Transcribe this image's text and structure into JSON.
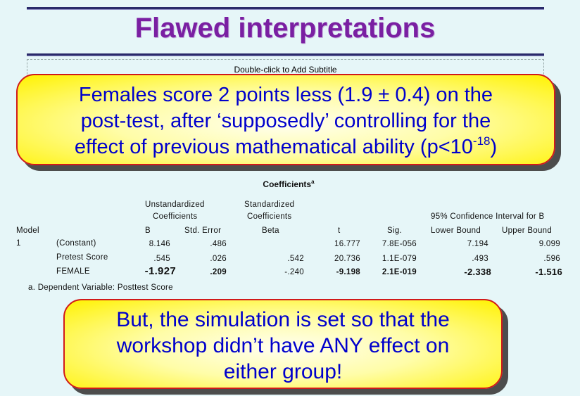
{
  "title": "Flawed interpretations",
  "subtitle_placeholder": "Double-click to Add Subtitle",
  "callout_top": {
    "line1": "Females score 2 points less (1.9 ± 0.4) on the",
    "line2": "post-test, after ‘supposedly’ controlling for the",
    "line3_main": "effect of previous mathematical ability (p<10",
    "line3_sup": "-18",
    "line3_end": ")"
  },
  "callout_bottom": {
    "line1": "But, the simulation is set so that the",
    "line2": "workshop didn’t have ANY effect on",
    "line3": "either group!"
  },
  "table": {
    "title": "Coefficients",
    "title_sup": "a",
    "group_headers": {
      "unstd_1": "Unstandardized",
      "unstd_2": "Coefficients",
      "std_1": "Standardized",
      "std_2": "Coefficients",
      "ci": "95% Confidence Interval for B"
    },
    "columns": {
      "model": "Model",
      "b": "B",
      "se": "Std. Error",
      "beta": "Beta",
      "t": "t",
      "sig": "Sig.",
      "lower": "Lower Bound",
      "upper": "Upper Bound"
    },
    "model_number": "1",
    "rows": [
      {
        "label": "(Constant)",
        "b": "8.146",
        "se": ".486",
        "beta": "",
        "t": "16.777",
        "sig": "7.8E-056",
        "lower": "7.194",
        "upper": "9.099"
      },
      {
        "label": "Pretest Score",
        "b": ".545",
        "se": ".026",
        "beta": ".542",
        "t": "20.736",
        "sig": "1.1E-079",
        "lower": ".493",
        "upper": ".596"
      },
      {
        "label": "FEMALE",
        "b": "-1.927",
        "se": ".209",
        "beta": "-.240",
        "t": "-9.198",
        "sig": "2.1E-019",
        "lower": "-2.338",
        "upper": "-1.516"
      }
    ],
    "footnote_marker": "a.",
    "footnote": "Dependent Variable: Posttest Score"
  }
}
